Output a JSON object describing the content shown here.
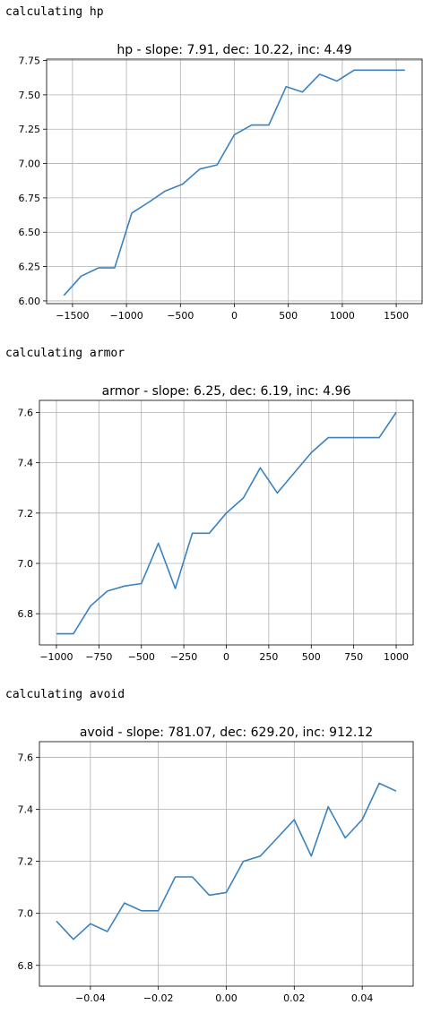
{
  "output_lines": [
    "calculating hp",
    "calculating armor",
    "calculating avoid"
  ],
  "colors": {
    "line": "#3a82bf",
    "grid": "#b0b0b0",
    "axes": "#000000"
  },
  "chart_data": [
    {
      "type": "line",
      "title": "hp - slope: 7.91, dec: 10.22, inc: 4.49",
      "xlabel": "",
      "ylabel": "",
      "xlim": [
        -1740,
        1740
      ],
      "ylim": [
        5.98,
        7.76
      ],
      "xticks": [
        -1500,
        -1000,
        -500,
        0,
        500,
        1000,
        1500
      ],
      "xtick_labels": [
        "−1500",
        "−1000",
        "−500",
        "0",
        "500",
        "1000",
        "1500"
      ],
      "yticks": [
        6.0,
        6.25,
        6.5,
        6.75,
        7.0,
        7.25,
        7.5,
        7.75
      ],
      "ytick_labels": [
        "6.00",
        "6.25",
        "6.50",
        "6.75",
        "7.00",
        "7.25",
        "7.50",
        "7.75"
      ],
      "grid": true,
      "series": [
        {
          "x": [
            -1580,
            -1420,
            -1260,
            -1110,
            -950,
            -790,
            -640,
            -480,
            -320,
            -160,
            0,
            160,
            320,
            480,
            630,
            790,
            950,
            1110,
            1260,
            1420,
            1580
          ],
          "y": [
            6.04,
            6.18,
            6.24,
            6.24,
            6.64,
            6.72,
            6.8,
            6.85,
            6.96,
            6.99,
            7.21,
            7.28,
            7.28,
            7.56,
            7.52,
            7.65,
            7.6,
            7.68,
            7.68,
            7.68,
            7.68
          ]
        }
      ]
    },
    {
      "type": "line",
      "title": "armor - slope: 6.25, dec: 6.19, inc: 4.96",
      "xlabel": "",
      "ylabel": "",
      "xlim": [
        -1100,
        1100
      ],
      "ylim": [
        6.676,
        7.648
      ],
      "xticks": [
        -1000,
        -750,
        -500,
        -250,
        0,
        250,
        500,
        750,
        1000
      ],
      "xtick_labels": [
        "−1000",
        "−750",
        "−500",
        "−250",
        "0",
        "250",
        "500",
        "750",
        "1000"
      ],
      "yticks": [
        6.8,
        7.0,
        7.2,
        7.4,
        7.6
      ],
      "ytick_labels": [
        "6.8",
        "7.0",
        "7.2",
        "7.4",
        "7.6"
      ],
      "grid": true,
      "series": [
        {
          "x": [
            -1000,
            -900,
            -800,
            -700,
            -600,
            -500,
            -400,
            -300,
            -200,
            -100,
            0,
            100,
            200,
            300,
            400,
            500,
            600,
            700,
            800,
            900,
            1000
          ],
          "y": [
            6.72,
            6.72,
            6.83,
            6.89,
            6.91,
            6.92,
            7.08,
            6.9,
            7.12,
            7.12,
            7.2,
            7.26,
            7.38,
            7.28,
            7.36,
            7.44,
            7.5,
            7.5,
            7.5,
            7.5,
            7.6
          ]
        }
      ]
    },
    {
      "type": "line",
      "title": "avoid - slope: 781.07, dec: 629.20, inc: 912.12",
      "xlabel": "",
      "ylabel": "",
      "xlim": [
        -0.055,
        0.055
      ],
      "ylim": [
        6.72,
        7.66
      ],
      "xticks": [
        -0.04,
        -0.02,
        0.0,
        0.02,
        0.04
      ],
      "xtick_labels": [
        "−0.04",
        "−0.02",
        "0.00",
        "0.02",
        "0.04"
      ],
      "yticks": [
        6.8,
        7.0,
        7.2,
        7.4,
        7.6
      ],
      "ytick_labels": [
        "6.8",
        "7.0",
        "7.2",
        "7.4",
        "7.6"
      ],
      "grid": true,
      "series": [
        {
          "x": [
            -0.05,
            -0.045,
            -0.04,
            -0.035,
            -0.03,
            -0.025,
            -0.02,
            -0.015,
            -0.01,
            -0.005,
            0.0,
            0.005,
            0.01,
            0.015,
            0.02,
            0.025,
            0.03,
            0.035,
            0.04,
            0.045,
            0.05
          ],
          "y": [
            6.97,
            6.9,
            6.96,
            6.93,
            7.04,
            7.01,
            7.01,
            7.14,
            7.14,
            7.07,
            7.08,
            7.2,
            7.22,
            7.29,
            7.36,
            7.22,
            7.41,
            7.29,
            7.36,
            7.5,
            7.47
          ]
        }
      ]
    }
  ]
}
